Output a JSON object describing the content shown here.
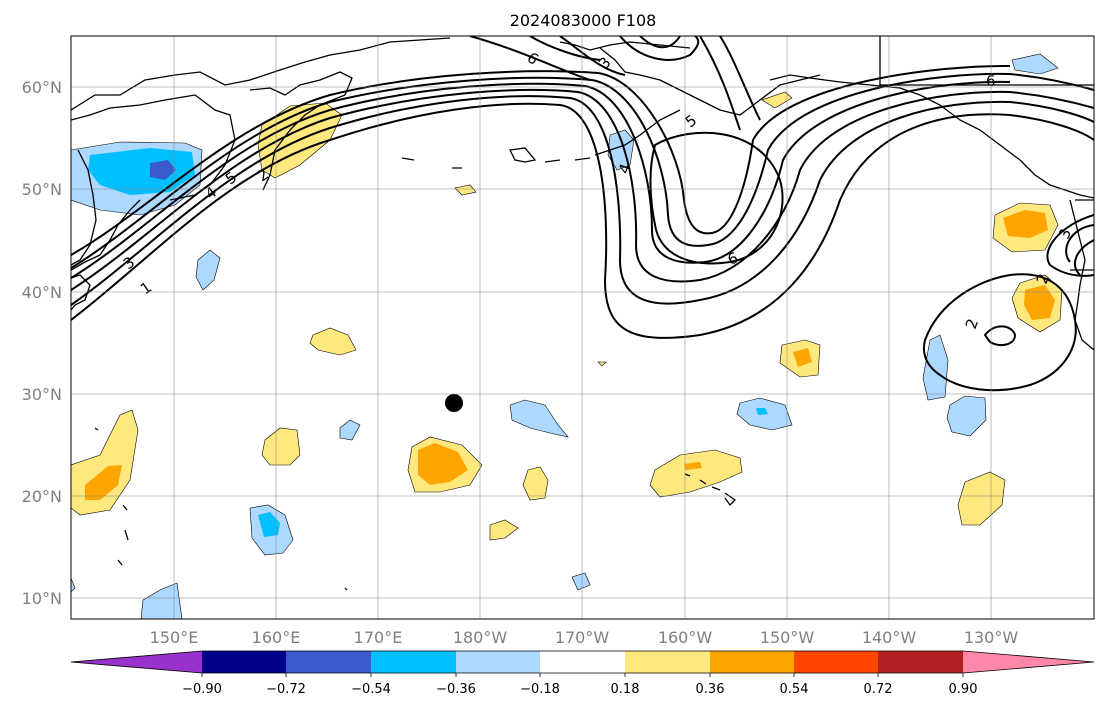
{
  "title": "2024083000 F108",
  "map": {
    "lon_ticks": [
      "150°E",
      "160°E",
      "170°E",
      "180°W",
      "170°W",
      "160°W",
      "150°W",
      "140°W",
      "130°W"
    ],
    "lat_ticks": [
      "60°N",
      "50°N",
      "40°N",
      "30°N",
      "20°N",
      "10°N"
    ],
    "contour_labels": [
      "6",
      "6",
      "5",
      "5",
      "4",
      "4",
      "3",
      "3",
      "2",
      "2",
      "1",
      "6",
      "3",
      "2"
    ],
    "marker": "storm-position-dot"
  },
  "colorbar": {
    "ticks": [
      "−0.90",
      "−0.72",
      "−0.54",
      "−0.36",
      "−0.18",
      "0.18",
      "0.36",
      "0.54",
      "0.72",
      "0.90"
    ],
    "colors": [
      "#9932cc",
      "#00008b",
      "#3a5bcc",
      "#00bfff",
      "#add8ff",
      "#ffffff",
      "#ffe97f",
      "#ffa500",
      "#ff4500",
      "#b22222",
      "#ff88aa"
    ]
  },
  "palette": {
    "yellow": "#ffe97f",
    "orange": "#ffa500",
    "darkorange": "#ff8c00",
    "lightblue": "#add8ff",
    "deepsky": "#00bfff",
    "royal": "#3a5bcc"
  }
}
